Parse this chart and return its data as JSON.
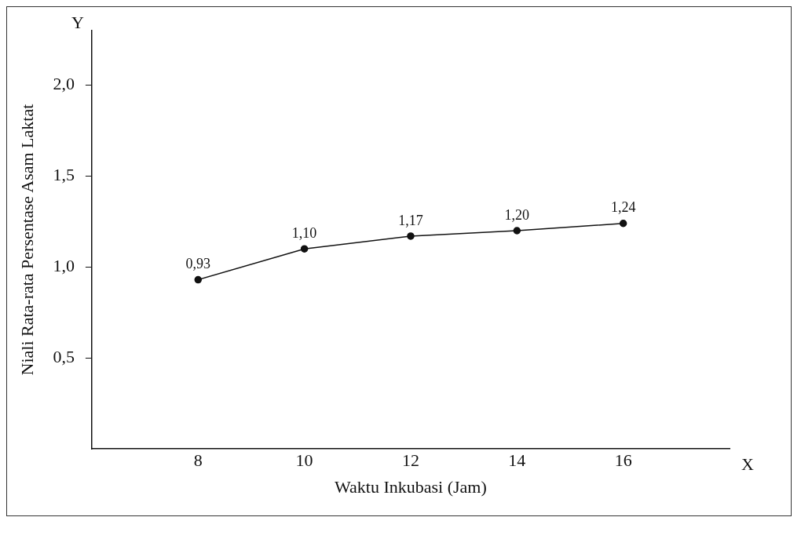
{
  "chart_data": {
    "type": "line",
    "xlabel": "Waktu Inkubasi (Jam)",
    "ylabel": "Niali Rata-rata Persentase Asam Laktat",
    "x": [
      8,
      10,
      12,
      14,
      16
    ],
    "series": [
      {
        "color": "#111111",
        "values": [
          0.93,
          1.1,
          1.17,
          1.2,
          1.24
        ],
        "value_labels": [
          "0,93",
          "1,10",
          "1,17",
          "1,20",
          "1,24"
        ]
      }
    ],
    "xlim": [
      6,
      18
    ],
    "xticks": [
      8,
      10,
      12,
      14,
      16
    ],
    "ylim": [
      0,
      2.3
    ],
    "yticks": [
      {
        "value": 0.5,
        "label": "0,5"
      },
      {
        "value": 1.0,
        "label": "1,0"
      },
      {
        "value": 1.5,
        "label": "1,5"
      },
      {
        "value": 2.0,
        "label": "2,0"
      }
    ],
    "annotations": [
      "Y",
      "X"
    ],
    "grid": false,
    "legend": false,
    "marker": "circle",
    "line_style": "solid"
  }
}
